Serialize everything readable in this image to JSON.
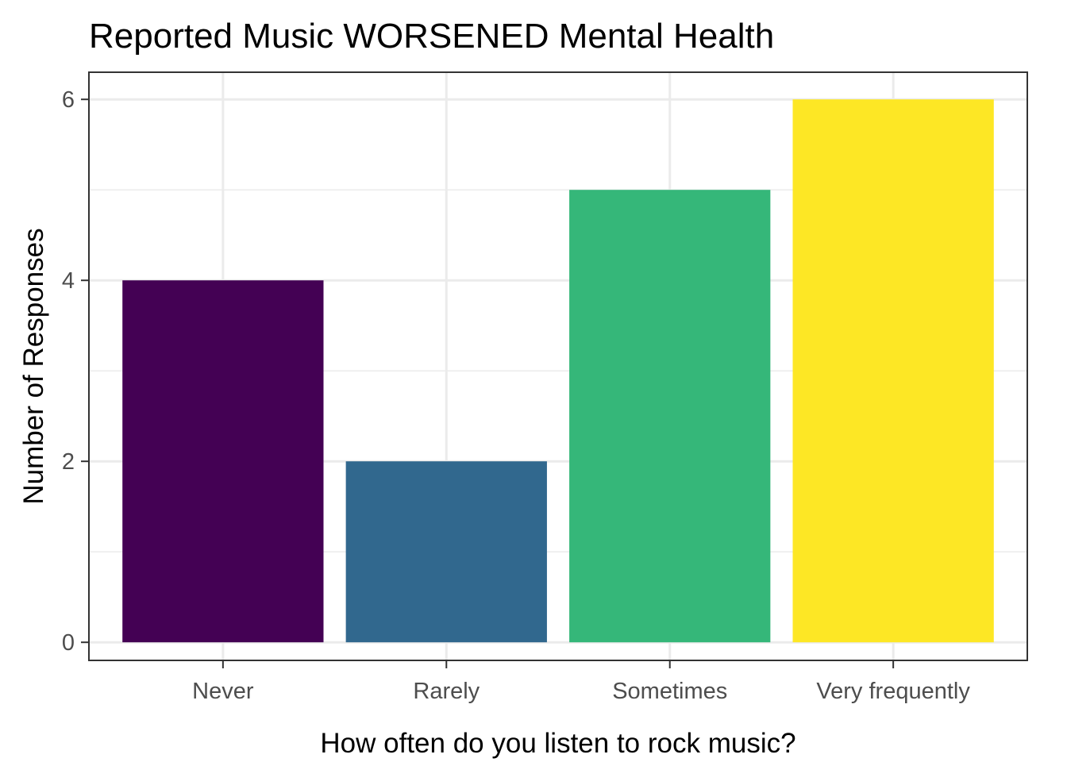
{
  "chart_data": {
    "type": "bar",
    "title": "Reported Music WORSENED Mental Health",
    "xlabel": "How often do you listen to rock music?",
    "ylabel": "Number of Responses",
    "categories": [
      "Never",
      "Rarely",
      "Sometimes",
      "Very frequently"
    ],
    "values": [
      4,
      2,
      5,
      6
    ],
    "colors": [
      "#440154",
      "#31688E",
      "#35B779",
      "#FDE725"
    ],
    "ylim": [
      -0.2,
      6.3
    ],
    "yticks": [
      0,
      2,
      4,
      6
    ],
    "ytick_labels": [
      "0",
      "2",
      "4",
      "6"
    ],
    "grid": true,
    "legend": "none"
  }
}
